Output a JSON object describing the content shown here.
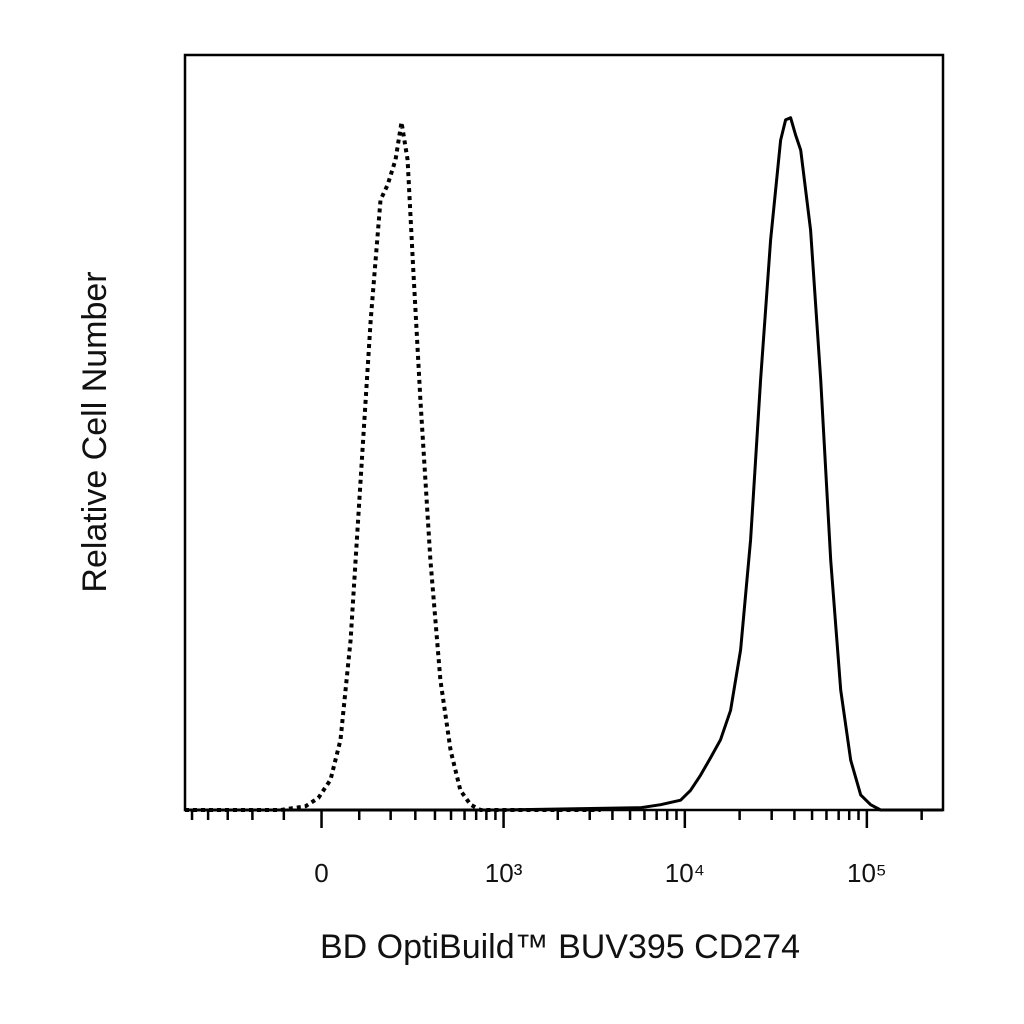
{
  "chart_data": {
    "type": "line",
    "x_label": "BD OptiBuild™ BUV395 CD274",
    "y_label": "Relative Cell Number",
    "xscale": "asinh",
    "xlim": [
      -550,
      262000
    ],
    "ylim": [
      0,
      100
    ],
    "xticks": [
      {
        "value": 0,
        "label": "0"
      },
      {
        "value": 1000,
        "label": "10³"
      },
      {
        "value": 10000,
        "label": "10⁴"
      },
      {
        "value": 100000,
        "label": "10⁵"
      }
    ],
    "xminorticks": [
      -500,
      -400,
      -300,
      -200,
      -100,
      100,
      200,
      300,
      400,
      500,
      600,
      700,
      800,
      900,
      2000,
      3000,
      4000,
      5000,
      6000,
      7000,
      8000,
      9000,
      20000,
      30000,
      40000,
      50000,
      60000,
      70000,
      80000,
      90000,
      200000
    ],
    "series": [
      {
        "color": "#000000",
        "style": "dotted",
        "x": [
          -550,
          -109,
          -41,
          -8,
          23,
          49,
          76,
          104,
          134,
          165,
          189,
          218,
          241,
          266,
          291,
          324,
          375,
          432,
          497,
          568,
          650,
          741,
          3450
        ],
        "values": [
          0,
          0,
          0.5,
          1.6,
          4.0,
          9.3,
          22.5,
          43.7,
          64.9,
          80.8,
          82.8,
          86.1,
          91.1,
          86.1,
          71.5,
          54.3,
          33.1,
          17.2,
          7.9,
          2.6,
          0.7,
          0,
          0
        ]
      },
      {
        "color": "#000000",
        "style": "solid",
        "x": [
          -550,
          970,
          5720,
          7360,
          9480,
          10750,
          12200,
          13840,
          15700,
          17840,
          20250,
          22980,
          26080,
          29600,
          33600,
          35800,
          38100,
          40600,
          43300,
          49100,
          55800,
          63300,
          71800,
          81500,
          92500,
          104800,
          119000,
          262000
        ],
        "values": [
          0,
          0,
          0.3,
          0.7,
          1.3,
          2.6,
          4.6,
          6.9,
          9.3,
          13.2,
          21.2,
          35.8,
          57.0,
          75.5,
          88.7,
          91.4,
          91.7,
          89.4,
          87.4,
          76.8,
          57.0,
          33.1,
          15.9,
          6.6,
          2.0,
          0.7,
          0,
          0
        ]
      }
    ]
  }
}
